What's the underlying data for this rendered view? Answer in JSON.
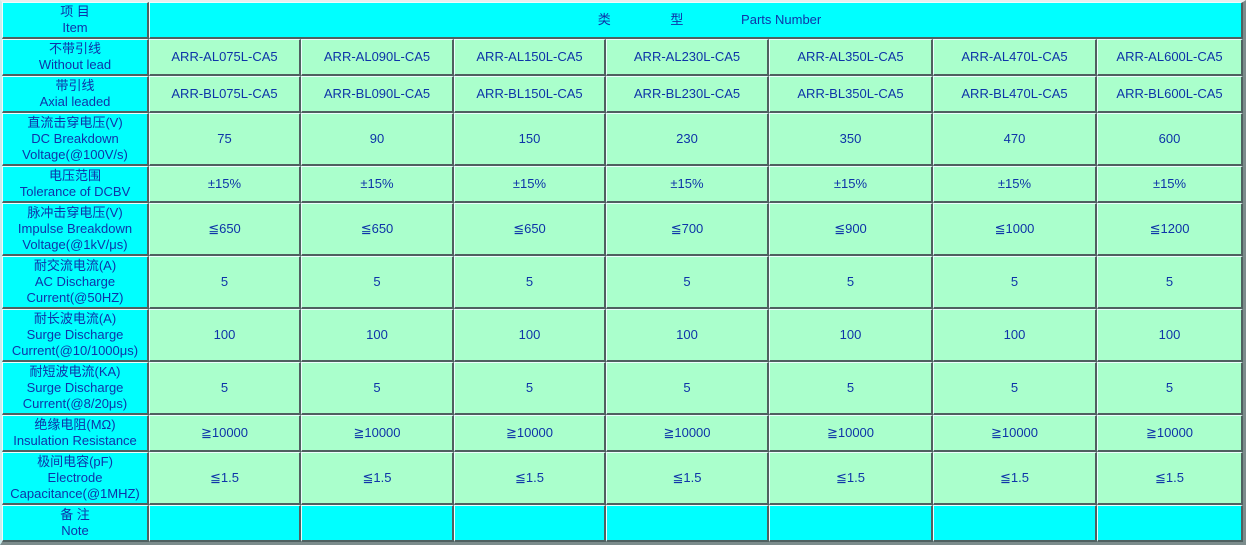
{
  "colors": {
    "header_bg": "#00ffff",
    "cell_bg": "#aaffcc",
    "text": "#0e34a8",
    "border_dark": "#4f6060",
    "border_light": "#ecfdfd"
  },
  "header": {
    "item_cn": "项 目",
    "item_en": "Item",
    "type_cn_1": "类",
    "type_cn_2": "型",
    "type_en": "Parts Number"
  },
  "rows": [
    {
      "id": "without-lead",
      "cn": "不带引线",
      "en": "Without lead",
      "values": [
        "ARR-AL075L-CA5",
        "ARR-AL090L-CA5",
        "ARR-AL150L-CA5",
        "ARR-AL230L-CA5",
        "ARR-AL350L-CA5",
        "ARR-AL470L-CA5",
        "ARR-AL600L-CA5"
      ]
    },
    {
      "id": "axial-leaded",
      "cn": "带引线",
      "en": "Axial leaded",
      "values": [
        "ARR-BL075L-CA5",
        "ARR-BL090L-CA5",
        "ARR-BL150L-CA5",
        "ARR-BL230L-CA5",
        "ARR-BL350L-CA5",
        "ARR-BL470L-CA5",
        "ARR-BL600L-CA5"
      ]
    },
    {
      "id": "dc-breakdown-voltage",
      "cn": "直流击穿电压(V)",
      "en": "DC Breakdown Voltage(@100V/s)",
      "values": [
        "75",
        "90",
        "150",
        "230",
        "350",
        "470",
        "600"
      ]
    },
    {
      "id": "voltage-tolerance",
      "cn": "电压范围",
      "en": "Tolerance of DCBV",
      "values": [
        "±15%",
        "±15%",
        "±15%",
        "±15%",
        "±15%",
        "±15%",
        "±15%"
      ]
    },
    {
      "id": "impulse-breakdown-voltage",
      "cn": "脉冲击穿电压(V)",
      "en": "Impulse Breakdown Voltage(@1kV/μs)",
      "values": [
        "≦650",
        "≦650",
        "≦650",
        "≦700",
        "≦900",
        "≦1000",
        "≦1200"
      ]
    },
    {
      "id": "ac-discharge-current",
      "cn": "耐交流电流(A)",
      "en": "AC Discharge Current(@50HZ)",
      "values": [
        "5",
        "5",
        "5",
        "5",
        "5",
        "5",
        "5"
      ]
    },
    {
      "id": "surge-discharge-current-long",
      "cn": "耐长波电流(A)",
      "en": "Surge Discharge Current(@10/1000μs)",
      "values": [
        "100",
        "100",
        "100",
        "100",
        "100",
        "100",
        "100"
      ]
    },
    {
      "id": "surge-discharge-current-short",
      "cn": "耐短波电流(KA)",
      "en": "Surge Discharge Current(@8/20μs)",
      "values": [
        "5",
        "5",
        "5",
        "5",
        "5",
        "5",
        "5"
      ]
    },
    {
      "id": "insulation-resistance",
      "cn": "绝缘电阻(MΩ)",
      "en": "Insulation Resistance",
      "values": [
        "≧10000",
        "≧10000",
        "≧10000",
        "≧10000",
        "≧10000",
        "≧10000",
        "≧10000"
      ]
    },
    {
      "id": "electrode-capacitance",
      "cn": "极间电容(pF)",
      "en": "Electrode Capacitance(@1MHZ)",
      "values": [
        "≦1.5",
        "≦1.5",
        "≦1.5",
        "≦1.5",
        "≦1.5",
        "≦1.5",
        "≦1.5"
      ]
    },
    {
      "id": "note",
      "cn": "备 注",
      "en": "Note",
      "values": [
        "",
        "",
        "",
        "",
        "",
        "",
        ""
      ]
    }
  ]
}
